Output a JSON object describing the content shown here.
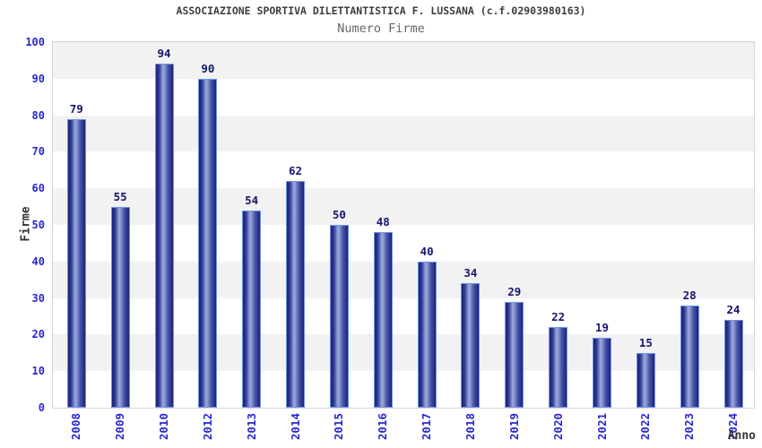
{
  "chart_data": {
    "type": "bar",
    "title": "ASSOCIAZIONE SPORTIVA DILETTANTISTICA F. LUSSANA (c.f.02903980163)",
    "subtitle": "Numero Firme",
    "xlabel": "Anno",
    "ylabel": "Firme",
    "categories": [
      "2008",
      "2009",
      "2010",
      "2012",
      "2013",
      "2014",
      "2015",
      "2016",
      "2017",
      "2018",
      "2019",
      "2020",
      "2021",
      "2022",
      "2023",
      "2024"
    ],
    "values": [
      79,
      55,
      94,
      90,
      54,
      62,
      50,
      48,
      40,
      34,
      29,
      22,
      19,
      15,
      28,
      24
    ],
    "ylim": [
      0,
      100
    ],
    "yticks": [
      0,
      10,
      20,
      30,
      40,
      50,
      60,
      70,
      80,
      90,
      100
    ],
    "grid": "alternating horizontal bands, gray band at top (90-100) then alternating",
    "legend": "none",
    "bar_value_labels": true,
    "x_tick_rotation_deg": -90,
    "colors": {
      "bar_dark": "#1d2079",
      "bar_light": "#9dabde",
      "bar_border": "#6e95e8",
      "tick_label_blue": "#2727ce",
      "value_label_navy": "#16166e",
      "band_gray": "#f2f2f2",
      "band_white": "#ffffff",
      "plot_border": "#d6d6d6",
      "title_color": "#3d3d3d",
      "subtitle_color": "#666666",
      "axis_title_color": "#333333"
    }
  }
}
